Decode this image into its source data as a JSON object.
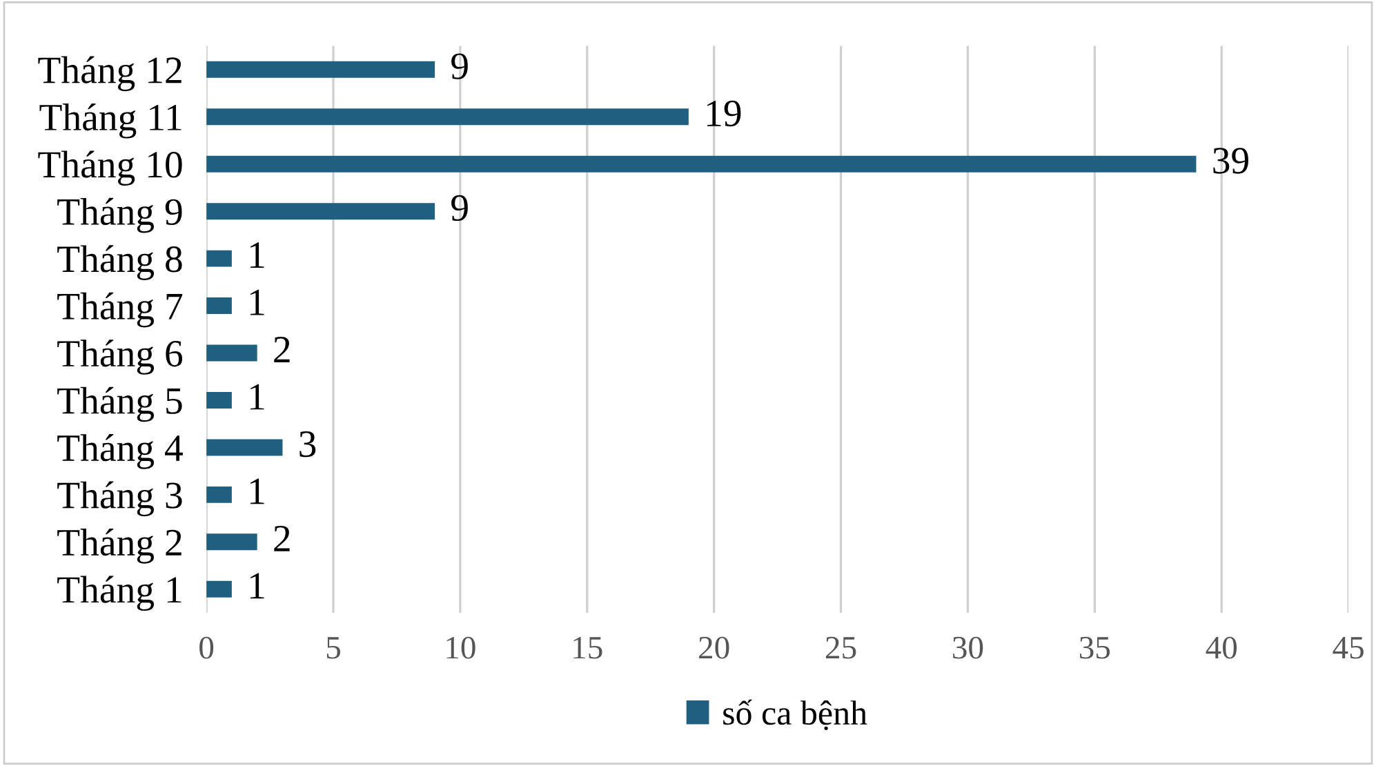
{
  "chart_data": {
    "type": "bar",
    "orientation": "horizontal",
    "categories": [
      "Tháng 12",
      "Tháng 11",
      "Tháng 10",
      "Tháng 9",
      "Tháng 8",
      "Tháng 7",
      "Tháng 6",
      "Tháng 5",
      "Tháng 4",
      "Tháng 3",
      "Tháng 2",
      "Tháng 1"
    ],
    "series": [
      {
        "name": "số ca bệnh",
        "color": "#1f5f7f",
        "values": [
          9,
          19,
          39,
          9,
          1,
          1,
          2,
          1,
          3,
          1,
          2,
          1
        ]
      }
    ],
    "xlim": [
      0,
      45
    ],
    "xticks": [
      0,
      5,
      10,
      15,
      20,
      25,
      30,
      35,
      40,
      45
    ],
    "grid": "x",
    "legend": "bottom",
    "data_labels": true
  }
}
